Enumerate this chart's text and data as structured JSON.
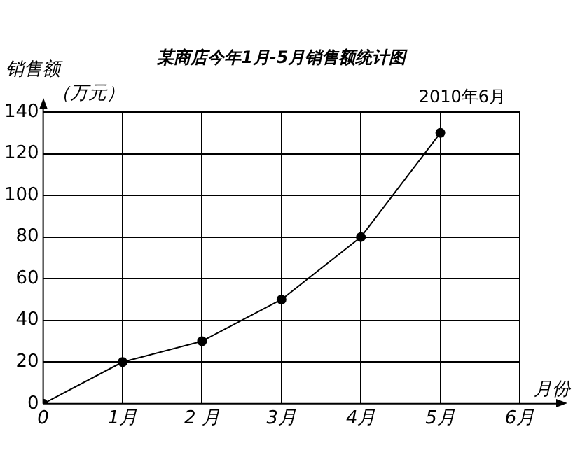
{
  "chart_data": {
    "type": "line",
    "title": "某商店今年1月-5月销售额统计图",
    "xlabel": "月份",
    "ylabel": "销售额（万元）",
    "annotations": [
      "2010年6月"
    ],
    "x": [
      0,
      1,
      2,
      3,
      4,
      5
    ],
    "series": [
      {
        "color": "#000000",
        "values": [
          0,
          20,
          30,
          50,
          80,
          130
        ]
      }
    ],
    "xlim": [
      0,
      6
    ],
    "xticks": [
      0,
      {
        "value": 1,
        "label": "1月"
      },
      {
        "value": 2,
        "label": "2 月"
      },
      {
        "value": 3,
        "label": "3月"
      },
      {
        "value": 4,
        "label": "4月"
      },
      {
        "value": 5,
        "label": "5月"
      },
      {
        "value": 6,
        "label": "6月"
      }
    ],
    "ylim": [
      0,
      140
    ],
    "yticks": [
      0,
      20,
      40,
      60,
      80,
      100,
      120,
      140
    ],
    "grid": true,
    "legend": false,
    "marker": "circle",
    "line_style": "solid"
  }
}
